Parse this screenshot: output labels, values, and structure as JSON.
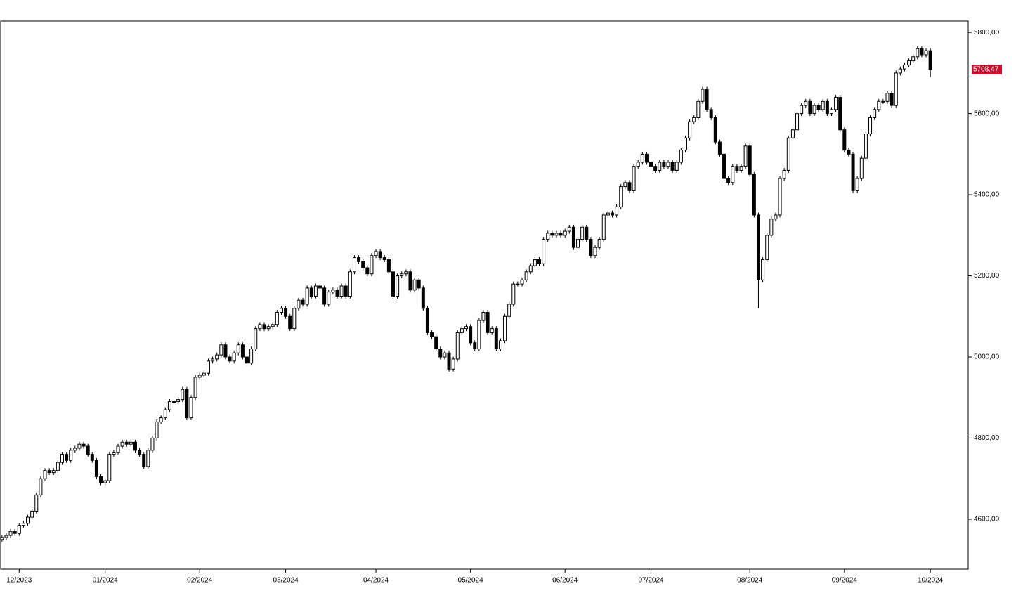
{
  "chart_data": {
    "type": "candlestick",
    "ylim": [
      4477,
      5828
    ],
    "yticks": [
      {
        "value": 4600,
        "label": "4600,00"
      },
      {
        "value": 4800,
        "label": "4800,00"
      },
      {
        "value": 5000,
        "label": "5000,00"
      },
      {
        "value": 5200,
        "label": "5200,00"
      },
      {
        "value": 5400,
        "label": "5400,00"
      },
      {
        "value": 5600,
        "label": "5600,00"
      },
      {
        "value": 5800,
        "label": "5800,00"
      }
    ],
    "xlim": [
      -0.3,
      224.8
    ],
    "xticks": [
      {
        "value": 4,
        "label": "12/2023"
      },
      {
        "value": 24,
        "label": "01/2024"
      },
      {
        "value": 46,
        "label": "02/2024"
      },
      {
        "value": 66,
        "label": "03/2024"
      },
      {
        "value": 87,
        "label": "04/2024"
      },
      {
        "value": 109,
        "label": "05/2024"
      },
      {
        "value": 131,
        "label": "06/2024"
      },
      {
        "value": 151,
        "label": "07/2024"
      },
      {
        "value": 174,
        "label": "08/2024"
      },
      {
        "value": 196,
        "label": "09/2024"
      },
      {
        "value": 216,
        "label": "10/2024"
      }
    ],
    "up_color": "#ffffff",
    "down_color": "#000000",
    "last_color": "#c8102e",
    "last_price": {
      "value": 5708.47,
      "label": "5708,47"
    },
    "open": [
      4550,
      4555,
      4560,
      4570,
      4565,
      4585,
      4590,
      4605,
      4620,
      4660,
      4700,
      4720,
      4715,
      4720,
      4740,
      4760,
      4745,
      4770,
      4775,
      4785,
      4780,
      4760,
      4745,
      4705,
      4690,
      4695,
      4760,
      4765,
      4780,
      4790,
      4785,
      4790,
      4770,
      4760,
      4730,
      4770,
      4800,
      4840,
      4850,
      4870,
      4890,
      4890,
      4895,
      4920,
      4850,
      4900,
      4950,
      4955,
      4960,
      4990,
      4995,
      5005,
      5030,
      5000,
      4990,
      5010,
      5030,
      5000,
      4985,
      5020,
      5070,
      5080,
      5070,
      5075,
      5080,
      5110,
      5120,
      5100,
      5070,
      5120,
      5140,
      5130,
      5170,
      5150,
      5175,
      5170,
      5130,
      5160,
      5165,
      5150,
      5175,
      5150,
      5210,
      5245,
      5235,
      5220,
      5205,
      5250,
      5260,
      5245,
      5240,
      5210,
      5150,
      5200,
      5205,
      5210,
      5165,
      5190,
      5170,
      5120,
      5060,
      5050,
      5020,
      5000,
      5010,
      4970,
      4995,
      5060,
      5070,
      5075,
      5035,
      5020,
      5090,
      5110,
      5060,
      5070,
      5020,
      5040,
      5100,
      5130,
      5180,
      5180,
      5190,
      5210,
      5225,
      5240,
      5230,
      5290,
      5305,
      5300,
      5305,
      5300,
      5310,
      5320,
      5270,
      5290,
      5320,
      5290,
      5250,
      5270,
      5290,
      5350,
      5355,
      5350,
      5370,
      5420,
      5430,
      5410,
      5470,
      5480,
      5500,
      5480,
      5470,
      5460,
      5480,
      5470,
      5480,
      5460,
      5480,
      5510,
      5540,
      5580,
      5590,
      5630,
      5660,
      5610,
      5590,
      5530,
      5500,
      5440,
      5430,
      5470,
      5460,
      5470,
      5520,
      5450,
      5350,
      5190,
      5240,
      5300,
      5340,
      5350,
      5440,
      5460,
      5540,
      5560,
      5600,
      5620,
      5630,
      5600,
      5620,
      5610,
      5630,
      5600,
      5610,
      5640,
      5560,
      5510,
      5500,
      5410,
      5440,
      5490,
      5550,
      5590,
      5610,
      5630,
      5630,
      5650,
      5620,
      5700,
      5710,
      5720,
      5730,
      5740,
      5760,
      5745,
      5755
    ],
    "high": [
      4561,
      4566,
      4576,
      4576,
      4591,
      4596,
      4611,
      4626,
      4666,
      4706,
      4726,
      4726,
      4726,
      4746,
      4766,
      4766,
      4776,
      4781,
      4791,
      4791,
      4786,
      4766,
      4751,
      4711,
      4701,
      4766,
      4771,
      4786,
      4796,
      4796,
      4796,
      4796,
      4776,
      4766,
      4776,
      4806,
      4846,
      4856,
      4876,
      4896,
      4896,
      4901,
      4926,
      4926,
      4906,
      4956,
      4961,
      4966,
      4996,
      5001,
      5011,
      5036,
      5036,
      5006,
      5016,
      5036,
      5036,
      5006,
      5026,
      5076,
      5086,
      5086,
      5081,
      5086,
      5116,
      5126,
      5126,
      5106,
      5126,
      5146,
      5146,
      5176,
      5176,
      5181,
      5181,
      5176,
      5166,
      5171,
      5171,
      5181,
      5181,
      5216,
      5251,
      5251,
      5241,
      5226,
      5256,
      5266,
      5266,
      5251,
      5246,
      5216,
      5206,
      5211,
      5216,
      5216,
      5196,
      5196,
      5176,
      5126,
      5066,
      5056,
      5026,
      5016,
      5016,
      5001,
      5066,
      5076,
      5081,
      5081,
      5041,
      5096,
      5116,
      5116,
      5076,
      5076,
      5046,
      5106,
      5136,
      5186,
      5186,
      5196,
      5216,
      5231,
      5246,
      5246,
      5296,
      5311,
      5311,
      5311,
      5311,
      5316,
      5326,
      5326,
      5296,
      5326,
      5326,
      5296,
      5276,
      5296,
      5356,
      5361,
      5361,
      5376,
      5426,
      5436,
      5436,
      5476,
      5486,
      5506,
      5506,
      5486,
      5476,
      5486,
      5486,
      5486,
      5486,
      5486,
      5516,
      5546,
      5586,
      5596,
      5636,
      5666,
      5666,
      5616,
      5596,
      5536,
      5506,
      5446,
      5476,
      5476,
      5476,
      5526,
      5526,
      5456,
      5356,
      5246,
      5306,
      5346,
      5356,
      5446,
      5466,
      5546,
      5566,
      5606,
      5626,
      5636,
      5636,
      5626,
      5626,
      5636,
      5636,
      5616,
      5646,
      5646,
      5566,
      5516,
      5506,
      5446,
      5496,
      5556,
      5596,
      5616,
      5636,
      5636,
      5656,
      5656,
      5706,
      5716,
      5726,
      5736,
      5746,
      5766,
      5766,
      5761,
      5761
    ],
    "low": [
      4544,
      4549,
      4554,
      4559,
      4559,
      4579,
      4584,
      4599,
      4614,
      4654,
      4694,
      4709,
      4709,
      4714,
      4734,
      4739,
      4739,
      4764,
      4769,
      4774,
      4754,
      4739,
      4699,
      4684,
      4684,
      4689,
      4754,
      4759,
      4774,
      4779,
      4779,
      4764,
      4754,
      4724,
      4724,
      4764,
      4794,
      4834,
      4844,
      4864,
      4884,
      4884,
      4889,
      4844,
      4844,
      4894,
      4944,
      4949,
      4954,
      4984,
      4989,
      4999,
      4994,
      4984,
      4984,
      5004,
      4994,
      4979,
      4979,
      5014,
      5064,
      5064,
      5064,
      5069,
      5074,
      5104,
      5094,
      5064,
      5064,
      5114,
      5124,
      5124,
      5144,
      5144,
      5164,
      5124,
      5124,
      5154,
      5144,
      5144,
      5144,
      5144,
      5204,
      5229,
      5214,
      5199,
      5199,
      5244,
      5239,
      5234,
      5204,
      5144,
      5144,
      5194,
      5199,
      5159,
      5159,
      5164,
      5114,
      5054,
      5044,
      5014,
      4994,
      4994,
      4964,
      4964,
      4989,
      5054,
      5064,
      5029,
      5014,
      5014,
      5084,
      5054,
      5054,
      5014,
      5014,
      5034,
      5094,
      5124,
      5174,
      5174,
      5184,
      5204,
      5219,
      5224,
      5224,
      5284,
      5294,
      5294,
      5294,
      5294,
      5304,
      5264,
      5264,
      5284,
      5284,
      5244,
      5244,
      5264,
      5284,
      5344,
      5344,
      5344,
      5364,
      5414,
      5404,
      5404,
      5464,
      5474,
      5474,
      5464,
      5454,
      5454,
      5464,
      5464,
      5454,
      5454,
      5474,
      5504,
      5534,
      5574,
      5584,
      5624,
      5604,
      5584,
      5524,
      5494,
      5434,
      5424,
      5424,
      5454,
      5454,
      5464,
      5444,
      5344,
      5120,
      5184,
      5234,
      5294,
      5334,
      5344,
      5434,
      5454,
      5534,
      5554,
      5594,
      5614,
      5594,
      5594,
      5604,
      5604,
      5594,
      5594,
      5604,
      5554,
      5504,
      5494,
      5404,
      5404,
      5434,
      5484,
      5544,
      5584,
      5604,
      5624,
      5624,
      5614,
      5614,
      5694,
      5704,
      5714,
      5724,
      5734,
      5739,
      5739,
      5690
    ],
    "close": [
      4555,
      4560,
      4570,
      4565,
      4585,
      4590,
      4605,
      4620,
      4660,
      4700,
      4720,
      4715,
      4720,
      4740,
      4760,
      4745,
      4770,
      4775,
      4785,
      4780,
      4760,
      4745,
      4705,
      4690,
      4695,
      4760,
      4765,
      4780,
      4790,
      4785,
      4790,
      4770,
      4760,
      4730,
      4770,
      4800,
      4840,
      4850,
      4870,
      4890,
      4890,
      4895,
      4920,
      4850,
      4900,
      4950,
      4955,
      4960,
      4990,
      4995,
      5005,
      5030,
      5000,
      4990,
      5010,
      5030,
      5000,
      4985,
      5020,
      5070,
      5080,
      5070,
      5075,
      5080,
      5110,
      5120,
      5100,
      5070,
      5120,
      5140,
      5130,
      5170,
      5150,
      5175,
      5170,
      5130,
      5160,
      5165,
      5150,
      5175,
      5150,
      5210,
      5245,
      5235,
      5220,
      5205,
      5250,
      5260,
      5245,
      5240,
      5210,
      5150,
      5200,
      5205,
      5210,
      5165,
      5190,
      5170,
      5120,
      5060,
      5050,
      5020,
      5000,
      5010,
      4970,
      4995,
      5060,
      5070,
      5075,
      5035,
      5020,
      5090,
      5110,
      5060,
      5070,
      5020,
      5040,
      5100,
      5130,
      5180,
      5180,
      5190,
      5210,
      5225,
      5240,
      5230,
      5290,
      5305,
      5300,
      5305,
      5300,
      5310,
      5320,
      5270,
      5290,
      5320,
      5290,
      5250,
      5270,
      5290,
      5350,
      5355,
      5350,
      5370,
      5420,
      5430,
      5410,
      5470,
      5480,
      5500,
      5480,
      5470,
      5460,
      5480,
      5470,
      5480,
      5460,
      5480,
      5510,
      5540,
      5580,
      5590,
      5630,
      5660,
      5610,
      5590,
      5530,
      5500,
      5440,
      5430,
      5470,
      5460,
      5470,
      5520,
      5450,
      5350,
      5190,
      5240,
      5300,
      5340,
      5350,
      5440,
      5460,
      5540,
      5560,
      5600,
      5620,
      5630,
      5600,
      5620,
      5610,
      5630,
      5600,
      5610,
      5640,
      5560,
      5510,
      5500,
      5410,
      5440,
      5490,
      5550,
      5590,
      5610,
      5630,
      5630,
      5650,
      5620,
      5700,
      5710,
      5720,
      5730,
      5740,
      5760,
      5745,
      5755,
      5708.47
    ]
  }
}
